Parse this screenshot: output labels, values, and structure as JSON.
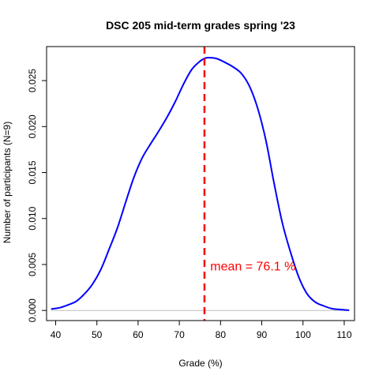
{
  "chart_data": {
    "type": "line",
    "title": "DSC 205 mid-term grades spring '23",
    "xlabel": "Grade (%)",
    "ylabel": "Number of participants (N=9)",
    "xlim": [
      37.8,
      112.5
    ],
    "ylim": [
      -0.0011,
      0.0287
    ],
    "x_ticks": [
      40,
      50,
      60,
      70,
      80,
      90,
      100,
      110
    ],
    "x_tick_labels": [
      "40",
      "50",
      "60",
      "70",
      "80",
      "90",
      "100",
      "110"
    ],
    "y_ticks": [
      0.0,
      0.005,
      0.01,
      0.015,
      0.02,
      0.025
    ],
    "y_tick_labels": [
      "0.000",
      "0.005",
      "0.010",
      "0.015",
      "0.020",
      "0.025"
    ],
    "grid": false,
    "series": [
      {
        "color": "#0000ff",
        "x": [
          38.9,
          41,
          43,
          45,
          47,
          49,
          51,
          53,
          55,
          57,
          59,
          61,
          63,
          65,
          67,
          69,
          71,
          73,
          75,
          76.1,
          77,
          79,
          81,
          83,
          85,
          87,
          89,
          91,
          93,
          95,
          97,
          99,
          101,
          103,
          105,
          107,
          109,
          111.2
        ],
        "y": [
          0.00015,
          0.0003,
          0.0006,
          0.001,
          0.0018,
          0.0029,
          0.0045,
          0.0067,
          0.009,
          0.0118,
          0.0145,
          0.0166,
          0.0181,
          0.0195,
          0.021,
          0.0227,
          0.0246,
          0.0262,
          0.0271,
          0.0274,
          0.0275,
          0.0274,
          0.027,
          0.0265,
          0.0258,
          0.0244,
          0.022,
          0.0185,
          0.0138,
          0.0095,
          0.0063,
          0.0036,
          0.0018,
          0.0009,
          0.0005,
          0.0002,
          0.0001,
          2e-05
        ]
      }
    ],
    "mean_line": {
      "x": 76.1,
      "color": "#ff0000",
      "style": "dashed"
    },
    "annotation": {
      "text": "mean = 76.1 %",
      "x": 77.5,
      "y": 0.0048,
      "color": "#ff0000"
    },
    "baseline": {
      "y": 0,
      "color": "#bebebe"
    }
  }
}
